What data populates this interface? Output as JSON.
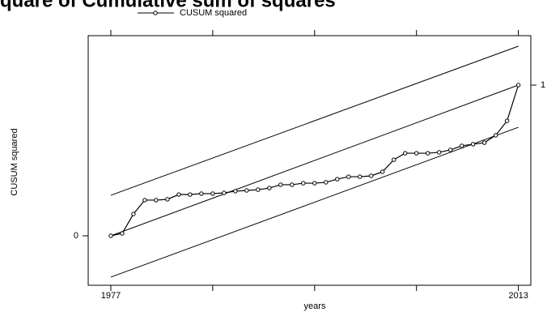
{
  "chart_data": {
    "type": "line",
    "title": "quare of Cumulative sum of squares",
    "xlabel": "years",
    "ylabel": "CUSUM squared",
    "x": [
      1977,
      1978,
      1979,
      1980,
      1981,
      1982,
      1983,
      1984,
      1985,
      1986,
      1987,
      1988,
      1989,
      1990,
      1991,
      1992,
      1993,
      1994,
      1995,
      1996,
      1997,
      1998,
      1999,
      2000,
      2001,
      2002,
      2003,
      2004,
      2005,
      2006,
      2007,
      2008,
      2009,
      2010,
      2011,
      2012,
      2013
    ],
    "series": [
      {
        "name": "CUSUM squared",
        "color": "#000000",
        "values": [
          0,
          0.016,
          0.145,
          0.237,
          0.237,
          0.242,
          0.274,
          0.274,
          0.28,
          0.28,
          0.285,
          0.296,
          0.301,
          0.306,
          0.317,
          0.339,
          0.339,
          0.349,
          0.349,
          0.355,
          0.376,
          0.392,
          0.392,
          0.398,
          0.425,
          0.505,
          0.548,
          0.548,
          0.548,
          0.554,
          0.57,
          0.597,
          0.608,
          0.618,
          0.667,
          0.763,
          1.0
        ]
      }
    ],
    "reference_lines": [
      {
        "x": [
          1977,
          2013
        ],
        "values": [
          0.269,
          1.258
        ]
      },
      {
        "x": [
          1977,
          2013
        ],
        "values": [
          0,
          1
        ]
      },
      {
        "x": [
          1977,
          2013
        ],
        "values": [
          -0.274,
          0.72
        ]
      }
    ],
    "xlim": [
      1975,
      2014.1
    ],
    "xticks": [
      1977,
      {
        "value": 1986,
        "label": null
      },
      {
        "value": 1995,
        "label": null
      },
      {
        "value": 2004,
        "label": null
      },
      2013
    ],
    "ylim": [
      -0.328,
      1.328
    ],
    "yticks": [
      0,
      1
    ]
  }
}
